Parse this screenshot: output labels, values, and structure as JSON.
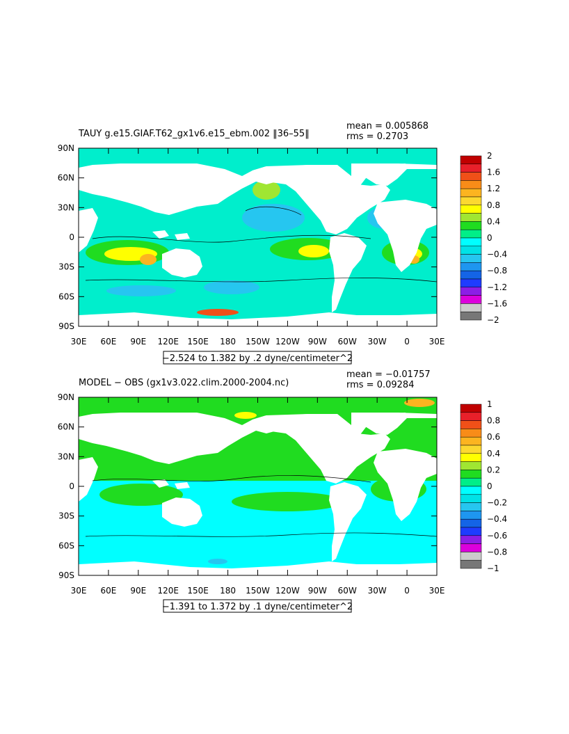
{
  "chart_data": [
    {
      "type": "heatmap",
      "title": "TAUY g.e15.GIAF.T62_gx1v6.e15_ebm.002 ‖36–55‖",
      "stats": {
        "mean": "mean = 0.005868",
        "rms": "rms = 0.2703"
      },
      "range_label": "−2.524 to 1.382 by .2 dyne/centimeter^2",
      "y_ticks": [
        "90N",
        "60N",
        "30N",
        "0",
        "30S",
        "60S",
        "90S"
      ],
      "x_ticks": [
        "30E",
        "60E",
        "90E",
        "120E",
        "150E",
        "180",
        "150W",
        "120W",
        "90W",
        "60W",
        "30W",
        "0",
        "30E"
      ],
      "colorbar": {
        "labels": [
          "2",
          "1.6",
          "1.2",
          "0.8",
          "0.4",
          "0",
          "−0.4",
          "−0.8",
          "−1.2",
          "−1.6",
          "−2"
        ],
        "colors": [
          "#c00000",
          "#e8202a",
          "#f05018",
          "#f88c18",
          "#fcb420",
          "#fcd830",
          "#ffff00",
          "#a0e632",
          "#20dc20",
          "#00ee88",
          "#00ffff",
          "#00e2e6",
          "#26c6f0",
          "#1e96f0",
          "#1464e6",
          "#1e3cff",
          "#8c1ee6",
          "#dc00dc",
          "#cccccc",
          "#777777"
        ]
      },
      "ylim": [
        -90,
        90
      ],
      "xlim": [
        30,
        390
      ]
    },
    {
      "type": "heatmap",
      "title": "MODEL − OBS (gx1v3.022.clim.2000-2004.nc)",
      "stats": {
        "mean": "mean = −0.01757",
        "rms": "rms = 0.09284"
      },
      "range_label": "−1.391 to 1.372 by .1 dyne/centimeter^2",
      "y_ticks": [
        "90N",
        "60N",
        "30N",
        "0",
        "30S",
        "60S",
        "90S"
      ],
      "x_ticks": [
        "30E",
        "60E",
        "90E",
        "120E",
        "150E",
        "180",
        "150W",
        "120W",
        "90W",
        "60W",
        "30W",
        "0",
        "30E"
      ],
      "colorbar": {
        "labels": [
          "1",
          "0.8",
          "0.6",
          "0.4",
          "0.2",
          "0",
          "−0.2",
          "−0.4",
          "−0.6",
          "−0.8",
          "−1"
        ],
        "colors": [
          "#c00000",
          "#e8202a",
          "#f05018",
          "#f88c18",
          "#fcb420",
          "#fcd830",
          "#ffff00",
          "#a0e632",
          "#20dc20",
          "#00ee88",
          "#00ffff",
          "#00e2e6",
          "#26c6f0",
          "#1e96f0",
          "#1464e6",
          "#1e3cff",
          "#8c1ee6",
          "#dc00dc",
          "#cccccc",
          "#777777"
        ]
      },
      "ylim": [
        -90,
        90
      ],
      "xlim": [
        30,
        390
      ]
    }
  ]
}
